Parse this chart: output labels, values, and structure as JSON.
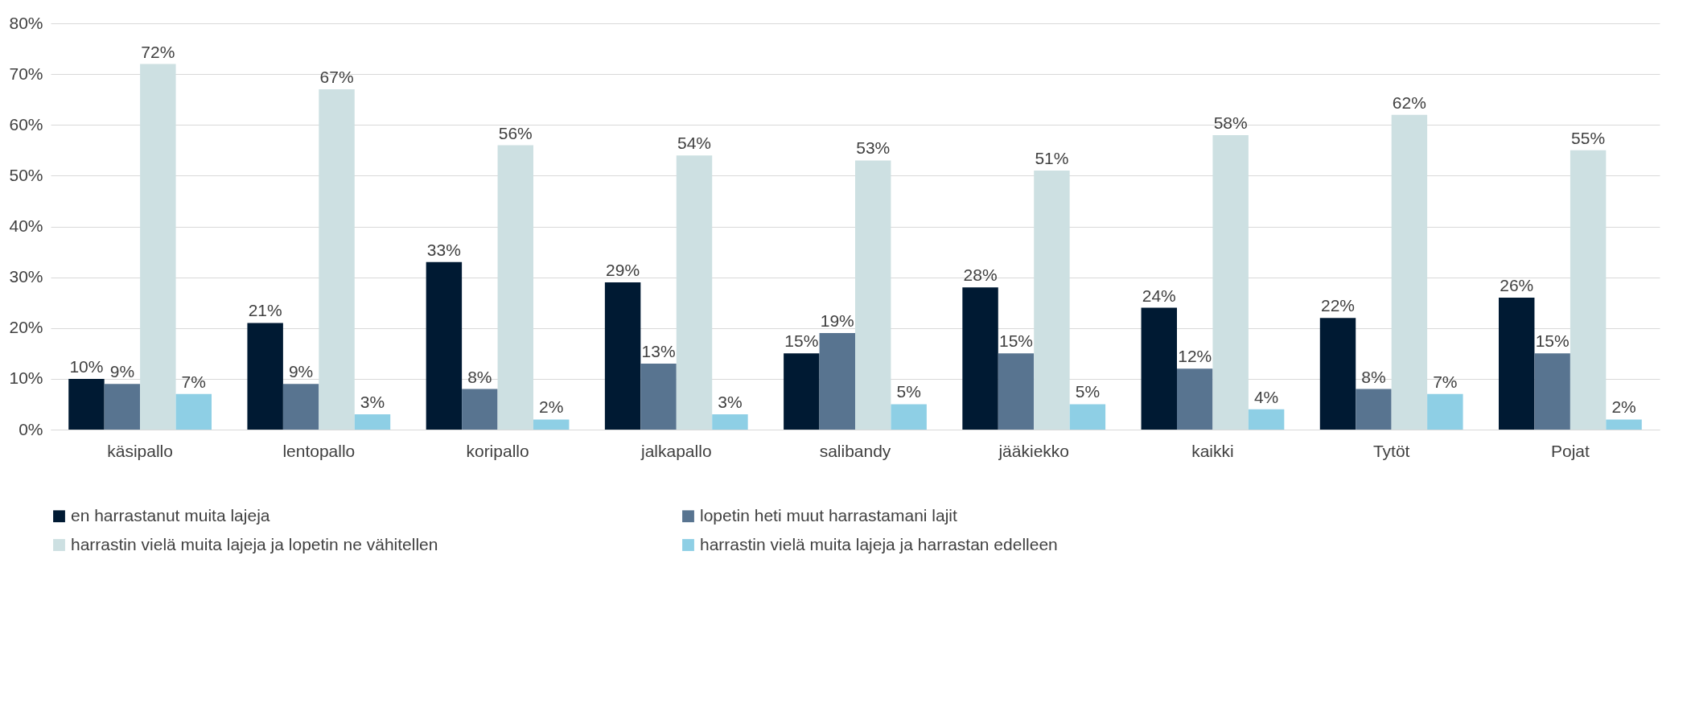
{
  "chart_data": {
    "type": "bar",
    "categories": [
      "käsipallo",
      "lentopallo",
      "koripallo",
      "jalkapallo",
      "salibandy",
      "jääkiekko",
      "kaikki",
      "Tytöt",
      "Pojat"
    ],
    "series": [
      {
        "name": "en harrastanut muita lajeja",
        "color": "#001a33",
        "values": [
          10,
          21,
          33,
          29,
          15,
          28,
          24,
          22,
          26
        ],
        "value_labels": [
          "10%",
          "21%",
          "33%",
          "29%",
          "15%",
          "28%",
          "24%",
          "22%",
          "26%"
        ]
      },
      {
        "name": "lopetin heti muut harrastamani lajit",
        "color": "#587490",
        "values": [
          9,
          9,
          8,
          13,
          19,
          15,
          12,
          8,
          15
        ],
        "value_labels": [
          "9%",
          "9%",
          "8%",
          "13%",
          "19%",
          "15%",
          "12%",
          "8%",
          "15%"
        ]
      },
      {
        "name": "harrastin vielä muita lajeja ja lopetin ne vähitellen",
        "color": "#cde0e2",
        "values": [
          72,
          67,
          56,
          54,
          53,
          51,
          58,
          62,
          55
        ],
        "value_labels": [
          "72%",
          "67%",
          "56%",
          "54%",
          "53%",
          "51%",
          "58%",
          "62%",
          "55%"
        ]
      },
      {
        "name": "harrastin vielä muita lajeja ja harrastan edelleen",
        "color": "#8ecfe5",
        "values": [
          7,
          3,
          2,
          3,
          5,
          5,
          4,
          7,
          2
        ],
        "value_labels": [
          "7%",
          "3%",
          "2%",
          "3%",
          "5%",
          "5%",
          "4%",
          "7%",
          "2%"
        ]
      }
    ],
    "ylim": [
      0,
      80
    ],
    "yticks": [
      {
        "value": 0,
        "label": "0%"
      },
      {
        "value": 10,
        "label": "10%"
      },
      {
        "value": 20,
        "label": "20%"
      },
      {
        "value": 30,
        "label": "30%"
      },
      {
        "value": 40,
        "label": "40%"
      },
      {
        "value": 50,
        "label": "50%"
      },
      {
        "value": 60,
        "label": "60%"
      },
      {
        "value": 70,
        "label": "70%"
      },
      {
        "value": 80,
        "label": "80%"
      }
    ],
    "grid": "y",
    "legend": "bottom"
  }
}
